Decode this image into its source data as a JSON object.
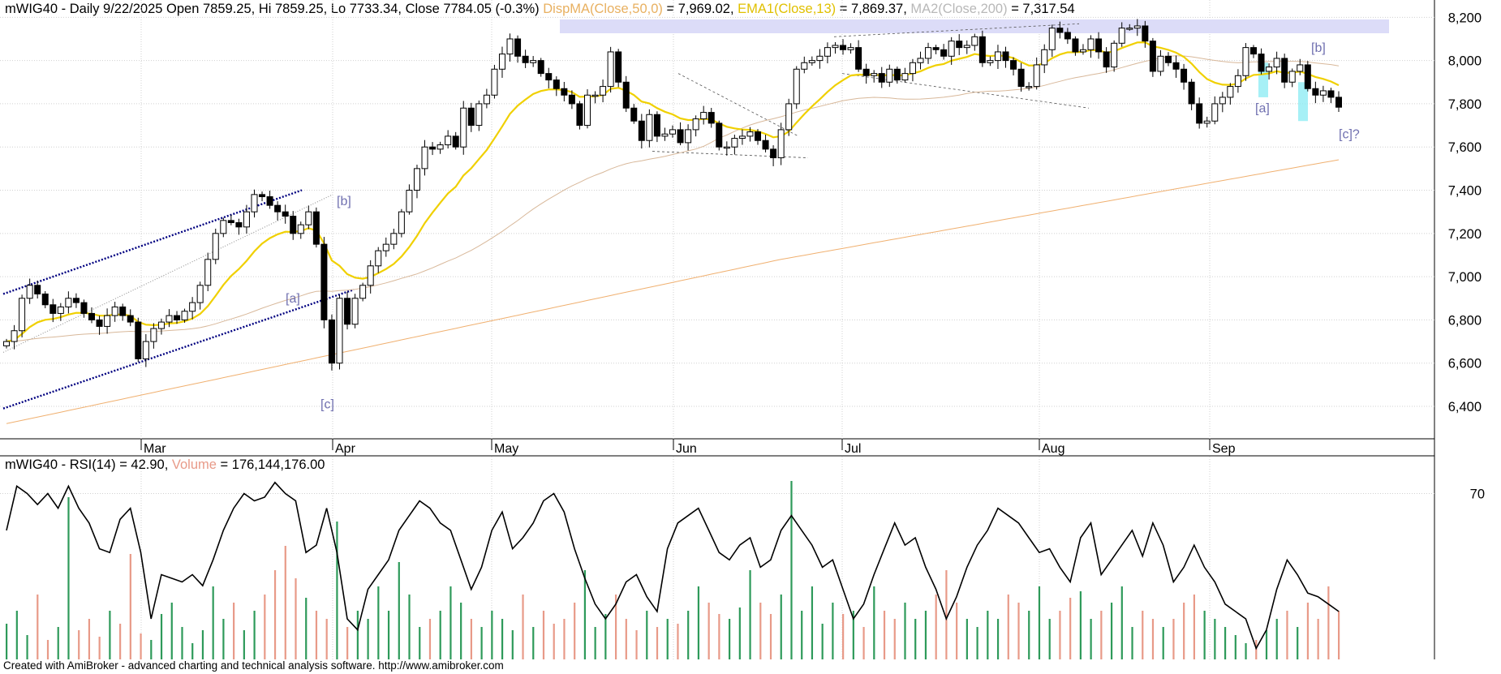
{
  "header": {
    "symbol": "mWIG40",
    "interval": "Daily",
    "date": "9/22/2025",
    "open": "Open 7859.25",
    "high": "Hi 7859.25",
    "low": "Lo 7733.34",
    "close": "Close 7784.05 (-0.3%)",
    "ma50_label": "DispMA(Close,50,0)",
    "ma50_value": "= 7,969.02",
    "ema13_label": "EMA1(Close,13)",
    "ema13_value": "= 7,869.37",
    "ma200_label": "MA2(Close,200)",
    "ma200_value": "= 7,317.54"
  },
  "rsi_header": {
    "prefix": "mWIG40 - RSI(14)",
    "rsi_value": "= 42.90,",
    "volume_label": "Volume",
    "volume_value": "= 176,144,176.00"
  },
  "footer": "Created with AmiBroker - advanced charting and technical analysis software. http://www.amibroker.com",
  "colors": {
    "ema13": "#f0d000",
    "ma50": "#d8b89a",
    "ma200": "#f0b070",
    "channel": "#000080",
    "resistance_zone": "#dcdcf8",
    "wave_label": "#7070b0",
    "highlight": "#90ecf4",
    "vol_up": "#2e9a5a",
    "vol_down": "#e89a88",
    "rsi": "#000000"
  },
  "chart_data": [
    {
      "type": "candlestick",
      "x_labels": [
        "Mar",
        "Apr",
        "May",
        "Jun",
        "Jul",
        "Aug",
        "Sep"
      ],
      "yticks": [
        "8,200",
        "8,000",
        "7,800",
        "7,600",
        "7,400",
        "7,200",
        "7,000",
        "6,800",
        "6,600",
        "6,400"
      ],
      "ylim": [
        6250,
        8280
      ],
      "annotations": [
        "[a]",
        "[b]",
        "[c]",
        "[a]",
        "[b]",
        "[c]?"
      ],
      "close_path": [
        6700,
        6750,
        6900,
        6960,
        6920,
        6870,
        6830,
        6860,
        6900,
        6880,
        6830,
        6800,
        6770,
        6820,
        6860,
        6820,
        6790,
        6620,
        6700,
        6760,
        6790,
        6820,
        6800,
        6840,
        6880,
        6960,
        7080,
        7200,
        7260,
        7250,
        7230,
        7300,
        7380,
        7370,
        7330,
        7300,
        7280,
        7200,
        7240,
        7300,
        7150,
        6800,
        6600,
        6900,
        6780,
        6900,
        6960,
        7050,
        7120,
        7150,
        7200,
        7300,
        7400,
        7500,
        7600,
        7590,
        7610,
        7650,
        7600,
        7780,
        7700,
        7800,
        7840,
        7960,
        8030,
        8100,
        8020,
        7990,
        8000,
        7940,
        7910,
        7870,
        7840,
        7800,
        7700,
        7840,
        7840,
        7880,
        8040,
        7900,
        7780,
        7720,
        7630,
        7750,
        7650,
        7660,
        7680,
        7620,
        7680,
        7730,
        7760,
        7710,
        7600,
        7600,
        7640,
        7650,
        7670,
        7630,
        7590,
        7550,
        7680,
        7800,
        7960,
        7990,
        8000,
        8020,
        8060,
        8070,
        8050,
        8060,
        7960,
        7930,
        7940,
        7900,
        7960,
        7910,
        7940,
        7990,
        8010,
        8060,
        8050,
        8020,
        8090,
        8060,
        8070,
        8110,
        7990,
        8000,
        8040,
        8000,
        7960,
        7880,
        7880,
        7980,
        8050,
        8150,
        8130,
        8100,
        8040,
        8050,
        8100,
        8040,
        7970,
        8080,
        8150,
        8150,
        8160,
        8090,
        7950,
        8020,
        7990,
        7960,
        7900,
        7800,
        7710,
        7720,
        7800,
        7830,
        7880,
        7930,
        8060,
        8030,
        7950,
        7970,
        8010,
        7900,
        7950,
        7980,
        7870,
        7840,
        7860,
        7830,
        7784
      ],
      "series": [
        {
          "name": "DispMA(Close,50,0)",
          "last": 7969.02
        },
        {
          "name": "EMA1(Close,13)",
          "last": 7869.37
        },
        {
          "name": "MA2(Close,200)",
          "last": 7317.54
        }
      ]
    },
    {
      "type": "line",
      "name": "RSI(14)",
      "yticks": [
        "70"
      ],
      "ylim": [
        25,
        80
      ],
      "rsi_path": [
        60,
        72,
        70,
        67,
        70,
        66,
        72,
        66,
        62,
        55,
        54,
        63,
        66,
        54,
        36,
        48,
        47,
        46,
        48,
        45,
        52,
        60,
        66,
        70,
        68,
        69,
        73,
        70,
        68,
        54,
        56,
        66,
        54,
        36,
        33,
        44,
        48,
        52,
        60,
        64,
        68,
        66,
        62,
        60,
        52,
        44,
        50,
        60,
        65,
        55,
        58,
        62,
        68,
        70,
        65,
        55,
        47,
        40,
        36,
        40,
        46,
        48,
        42,
        38,
        55,
        62,
        64,
        66,
        60,
        54,
        52,
        56,
        58,
        50,
        52,
        60,
        64,
        60,
        56,
        50,
        52,
        44,
        36,
        40,
        48,
        55,
        62,
        56,
        58,
        50,
        44,
        36,
        42,
        50,
        56,
        60,
        66,
        64,
        62,
        58,
        54,
        55,
        50,
        46,
        58,
        62,
        48,
        52,
        56,
        60,
        53,
        62,
        56,
        46,
        50,
        56,
        50,
        46,
        40,
        38,
        36,
        28,
        33,
        44,
        52,
        48,
        43,
        42,
        40,
        38
      ],
      "volume_path": [
        22,
        30,
        15,
        40,
        12,
        20,
        100,
        18,
        25,
        14,
        30,
        22,
        65,
        16,
        12,
        28,
        35,
        20,
        10,
        18,
        45,
        25,
        35,
        18,
        30,
        40,
        55,
        70,
        50,
        38,
        30,
        25,
        85,
        20,
        30,
        25,
        45,
        30,
        60,
        40,
        20,
        25,
        30,
        45,
        35,
        25,
        20,
        30,
        25,
        18,
        40,
        20,
        30,
        22,
        25,
        35,
        55,
        20,
        28,
        40,
        25,
        18,
        30,
        20,
        25,
        22,
        30,
        45,
        35,
        28,
        25,
        32,
        55,
        35,
        28,
        40,
        110,
        30,
        45,
        22,
        35,
        28,
        30,
        20,
        45,
        30,
        25,
        35,
        25,
        30,
        40,
        55,
        35,
        25,
        20,
        30,
        25,
        40,
        35,
        30,
        45,
        25,
        30,
        38,
        42,
        25,
        30,
        35,
        45,
        20,
        30,
        25,
        20,
        25,
        35,
        40,
        30,
        25,
        20,
        15,
        10,
        12,
        18,
        25,
        30,
        20,
        35,
        25,
        45,
        30
      ],
      "rsi_last": 42.9,
      "volume_last": 176144176.0
    }
  ]
}
